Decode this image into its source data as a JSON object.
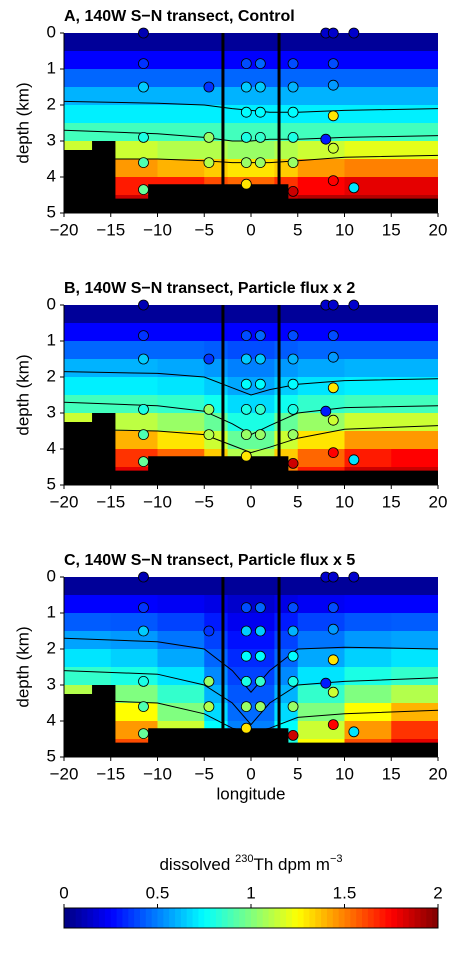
{
  "chart_data": [
    {
      "type": "section",
      "title": "A, 140W S−N transect, Control",
      "ylabel": "depth (km)",
      "xlim": [
        -20,
        20
      ],
      "ylim": [
        5,
        0
      ],
      "xticks": [
        {
          "value": -20,
          "label": "−20"
        },
        {
          "value": -15,
          "label": "−15"
        },
        {
          "value": -10,
          "label": "−10"
        },
        {
          "value": -5,
          "label": "−5"
        },
        0,
        5,
        10,
        15,
        20
      ],
      "yticks": [
        0,
        1,
        2,
        3,
        4,
        5
      ],
      "x_edges": [
        -20,
        -15,
        -10,
        -5,
        -2.5,
        2.5,
        5,
        10,
        15,
        20
      ],
      "depth_edges": [
        0,
        0.5,
        1,
        1.5,
        2,
        2.5,
        3,
        3.5,
        4,
        4.5,
        5
      ],
      "field": [
        [
          0.05,
          0.05,
          0.05,
          0.05,
          0.05,
          0.05,
          0.05,
          0.05,
          0.05
        ],
        [
          0.25,
          0.25,
          0.25,
          0.25,
          0.25,
          0.25,
          0.25,
          0.25,
          0.25
        ],
        [
          0.45,
          0.45,
          0.45,
          0.45,
          0.45,
          0.45,
          0.45,
          0.45,
          0.45
        ],
        [
          0.6,
          0.6,
          0.6,
          0.6,
          0.6,
          0.6,
          0.6,
          0.6,
          0.6
        ],
        [
          0.72,
          0.72,
          0.72,
          0.72,
          0.72,
          0.72,
          0.72,
          0.72,
          0.72
        ],
        [
          0.88,
          0.88,
          0.88,
          0.88,
          0.88,
          0.88,
          0.88,
          0.88,
          0.88
        ],
        [
          1.15,
          1.15,
          1.1,
          1.1,
          1.05,
          1.1,
          1.15,
          1.2,
          1.2
        ],
        [
          1.45,
          1.45,
          1.4,
          1.35,
          1.3,
          1.35,
          1.45,
          1.5,
          1.5
        ],
        [
          1.7,
          1.7,
          1.7,
          1.6,
          1.55,
          1.65,
          1.75,
          1.8,
          1.8
        ],
        [
          1.85,
          1.85,
          1.85,
          1.8,
          1.8,
          1.85,
          1.9,
          1.9,
          1.9
        ]
      ],
      "contours": [
        {
          "x": [
            -20,
            -10,
            -5,
            -2,
            0,
            2,
            5,
            10,
            20
          ],
          "depth": [
            1.9,
            1.95,
            2.0,
            2.1,
            2.15,
            2.2,
            2.2,
            2.15,
            2.1
          ]
        },
        {
          "x": [
            -20,
            -10,
            -5,
            -2,
            0,
            2,
            5,
            10,
            20
          ],
          "depth": [
            2.7,
            2.8,
            2.9,
            3.0,
            3.0,
            2.95,
            2.95,
            2.9,
            2.85
          ]
        },
        {
          "x": [
            -20,
            -10,
            -5,
            -2,
            0,
            2,
            5,
            10,
            20
          ],
          "depth": [
            3.5,
            3.5,
            3.55,
            3.6,
            3.6,
            3.6,
            3.55,
            3.45,
            3.4
          ]
        }
      ],
      "bathymetry": {
        "x_edges": [
          -20,
          -17,
          -14.5,
          -11,
          4,
          20
        ],
        "depth": [
          3.25,
          3.0,
          4.6,
          4.2,
          4.6
        ]
      },
      "vlines": [
        -3,
        3
      ]
    },
    {
      "type": "section",
      "title": "B, 140W S−N transect, Particle flux x 2",
      "ylabel": "depth (km)",
      "xlim": [
        -20,
        20
      ],
      "ylim": [
        5,
        0
      ],
      "xticks": [
        {
          "value": -20,
          "label": "−20"
        },
        {
          "value": -15,
          "label": "−15"
        },
        {
          "value": -10,
          "label": "−10"
        },
        {
          "value": -5,
          "label": "−5"
        },
        0,
        5,
        10,
        15,
        20
      ],
      "yticks": [
        0,
        1,
        2,
        3,
        4,
        5
      ],
      "x_edges": [
        -20,
        -15,
        -10,
        -5,
        -2.5,
        2.5,
        5,
        10,
        15,
        20
      ],
      "depth_edges": [
        0,
        0.5,
        1,
        1.5,
        2,
        2.5,
        3,
        3.5,
        4,
        4.5,
        5
      ],
      "field": [
        [
          0.05,
          0.05,
          0.05,
          0.05,
          0.05,
          0.05,
          0.05,
          0.05,
          0.05
        ],
        [
          0.25,
          0.25,
          0.25,
          0.25,
          0.25,
          0.25,
          0.25,
          0.25,
          0.25
        ],
        [
          0.45,
          0.45,
          0.45,
          0.43,
          0.4,
          0.43,
          0.45,
          0.45,
          0.45
        ],
        [
          0.6,
          0.6,
          0.58,
          0.55,
          0.5,
          0.55,
          0.58,
          0.6,
          0.6
        ],
        [
          0.72,
          0.72,
          0.7,
          0.65,
          0.58,
          0.65,
          0.7,
          0.72,
          0.72
        ],
        [
          0.88,
          0.88,
          0.85,
          0.78,
          0.68,
          0.78,
          0.85,
          0.88,
          0.88
        ],
        [
          1.15,
          1.12,
          1.05,
          0.95,
          0.8,
          0.95,
          1.05,
          1.15,
          1.15
        ],
        [
          1.45,
          1.4,
          1.3,
          1.15,
          0.95,
          1.15,
          1.3,
          1.45,
          1.45
        ],
        [
          1.7,
          1.65,
          1.55,
          1.35,
          1.1,
          1.35,
          1.55,
          1.7,
          1.75
        ],
        [
          1.85,
          1.8,
          1.7,
          1.5,
          1.2,
          1.5,
          1.7,
          1.85,
          1.85
        ]
      ],
      "contours": [
        {
          "x": [
            -20,
            -10,
            -5,
            -2,
            0,
            2,
            5,
            10,
            20
          ],
          "depth": [
            1.85,
            1.9,
            2.0,
            2.3,
            2.5,
            2.35,
            2.2,
            2.1,
            2.05
          ]
        },
        {
          "x": [
            -20,
            -10,
            -5,
            -2,
            0,
            2,
            5,
            10,
            20
          ],
          "depth": [
            2.7,
            2.8,
            2.95,
            3.3,
            3.6,
            3.35,
            3.0,
            2.85,
            2.8
          ]
        },
        {
          "x": [
            -20,
            -10,
            -5,
            -2,
            0,
            2,
            5,
            10,
            20
          ],
          "depth": [
            3.45,
            3.5,
            3.6,
            3.9,
            4.1,
            3.95,
            3.7,
            3.45,
            3.35
          ]
        }
      ],
      "bathymetry": {
        "x_edges": [
          -20,
          -17,
          -14.5,
          -11,
          4,
          20
        ],
        "depth": [
          3.25,
          3.0,
          4.6,
          4.2,
          4.6
        ]
      },
      "vlines": [
        -3,
        3
      ]
    },
    {
      "type": "section",
      "title": "C, 140W S−N transect, Particle flux x 5",
      "ylabel": "depth (km)",
      "xlabel": "longitude",
      "xlim": [
        -20,
        20
      ],
      "ylim": [
        5,
        0
      ],
      "xticks": [
        {
          "value": -20,
          "label": "−20"
        },
        {
          "value": -15,
          "label": "−15"
        },
        {
          "value": -10,
          "label": "−10"
        },
        {
          "value": -5,
          "label": "−5"
        },
        0,
        5,
        10,
        15,
        20
      ],
      "yticks": [
        0,
        1,
        2,
        3,
        4,
        5
      ],
      "x_edges": [
        -20,
        -15,
        -10,
        -5,
        -2.5,
        2.5,
        5,
        10,
        15,
        20
      ],
      "depth_edges": [
        0,
        0.5,
        1,
        1.5,
        2,
        2.5,
        3,
        3.5,
        4,
        4.5,
        5
      ],
      "field": [
        [
          0.05,
          0.05,
          0.05,
          0.05,
          0.05,
          0.05,
          0.05,
          0.05,
          0.05
        ],
        [
          0.25,
          0.25,
          0.23,
          0.2,
          0.15,
          0.2,
          0.23,
          0.25,
          0.25
        ],
        [
          0.43,
          0.42,
          0.38,
          0.3,
          0.22,
          0.3,
          0.38,
          0.42,
          0.43
        ],
        [
          0.57,
          0.55,
          0.48,
          0.38,
          0.28,
          0.38,
          0.48,
          0.55,
          0.57
        ],
        [
          0.7,
          0.66,
          0.58,
          0.45,
          0.33,
          0.45,
          0.58,
          0.66,
          0.7
        ],
        [
          0.85,
          0.8,
          0.7,
          0.52,
          0.38,
          0.52,
          0.7,
          0.8,
          0.85
        ],
        [
          1.1,
          1.0,
          0.85,
          0.6,
          0.42,
          0.6,
          0.85,
          1.0,
          1.1
        ],
        [
          1.4,
          1.25,
          1.0,
          0.68,
          0.46,
          0.68,
          1.0,
          1.25,
          1.4
        ],
        [
          1.65,
          1.45,
          1.15,
          0.75,
          0.5,
          0.75,
          1.15,
          1.45,
          1.65
        ],
        [
          1.8,
          1.6,
          1.25,
          0.8,
          0.52,
          0.8,
          1.25,
          1.6,
          1.8
        ]
      ],
      "contours": [
        {
          "x": [
            -20,
            -10,
            -5,
            -2,
            0,
            2,
            5,
            10,
            20
          ],
          "depth": [
            1.7,
            1.8,
            2.0,
            2.6,
            3.2,
            2.6,
            2.0,
            1.95,
            2.0
          ]
        },
        {
          "x": [
            -20,
            -10,
            -5,
            -2,
            0,
            2,
            5,
            10,
            20
          ],
          "depth": [
            2.6,
            2.7,
            3.0,
            3.5,
            4.1,
            3.5,
            3.0,
            2.9,
            2.8
          ]
        },
        {
          "x": [
            -20,
            -10,
            -5,
            -2,
            0,
            2,
            5,
            10,
            20
          ],
          "depth": [
            3.4,
            3.5,
            3.8,
            4.2,
            4.3,
            4.2,
            3.9,
            3.8,
            3.7
          ]
        }
      ],
      "bathymetry": {
        "x_edges": [
          -20,
          -17,
          -14.5,
          -11,
          4,
          20
        ],
        "depth": [
          3.25,
          3.0,
          4.6,
          4.2,
          4.6
        ]
      },
      "vlines": [
        -3,
        3
      ]
    }
  ],
  "observations": {
    "x": [
      -11.5,
      -11.5,
      -11.5,
      -11.5,
      -11.5,
      -11.5,
      -4.5,
      -4.5,
      -4.5,
      -0.5,
      -0.5,
      -0.5,
      -0.5,
      -0.5,
      -0.5,
      1,
      1,
      1,
      1,
      1,
      4.5,
      4.5,
      4.5,
      4.5,
      4.5,
      4.5,
      8,
      8,
      8.8,
      8.8,
      8.8,
      8.8,
      8.8,
      8.8,
      11,
      11
    ],
    "depth": [
      0,
      0.85,
      1.5,
      2.9,
      3.6,
      4.35,
      1.5,
      2.9,
      3.6,
      0.85,
      1.5,
      2.2,
      2.9,
      3.6,
      4.2,
      0.85,
      1.5,
      2.2,
      2.9,
      3.6,
      0.85,
      1.5,
      2.2,
      2.9,
      3.6,
      4.4,
      0,
      2.95,
      0,
      0.85,
      1.45,
      2.3,
      3.2,
      4.1,
      0,
      4.3
    ],
    "values": [
      0.1,
      0.35,
      0.65,
      0.8,
      0.9,
      0.95,
      0.35,
      1.05,
      1.1,
      0.4,
      0.65,
      0.75,
      0.8,
      1.05,
      1.3,
      0.45,
      0.65,
      0.75,
      0.85,
      1.05,
      0.4,
      0.6,
      0.75,
      0.8,
      1.05,
      1.85,
      0.15,
      0.3,
      0.15,
      0.4,
      0.55,
      1.3,
      1.15,
      1.75,
      0.15,
      0.7
    ]
  },
  "colorbar": {
    "label": [
      "dissolved ",
      "230",
      "Th dpm m",
      "−3"
    ],
    "lim": [
      0,
      2
    ],
    "ticks": [
      0,
      0.5,
      1,
      1.5,
      2
    ]
  }
}
